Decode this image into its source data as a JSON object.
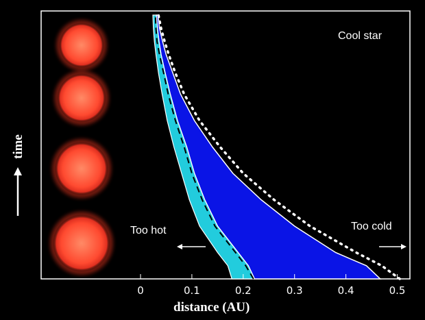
{
  "colors": {
    "background": "#000000",
    "frame": "#ffffff",
    "zone_outer": "#0a14e6",
    "zone_inner": "#22ccdd",
    "star": "#ff5a3c"
  },
  "annotations": {
    "cool_star": "Cool star",
    "too_hot": "Too hot",
    "too_cold": "Too cold",
    "time": "time"
  },
  "chart_data": {
    "type": "area",
    "title": "",
    "xlabel": "distance (AU)",
    "ylabel": "time",
    "xlim": [
      -0.18,
      0.52
    ],
    "x_ticks": [
      "0",
      "0.1",
      "0.2",
      "0.3",
      "0.4",
      "0.5"
    ],
    "x_tick_values": [
      0,
      0.1,
      0.2,
      0.3,
      0.4,
      0.5
    ],
    "time_fraction": [
      0,
      0.05,
      0.1,
      0.2,
      0.3,
      0.4,
      0.5,
      0.6,
      0.7,
      0.78,
      0.85,
      0.9,
      0.95,
      1.0
    ],
    "habitable_zone_inner_au": [
      0.222,
      0.21,
      0.19,
      0.15,
      0.125,
      0.105,
      0.09,
      0.072,
      0.058,
      0.048,
      0.04,
      0.036,
      0.033,
      0.031
    ],
    "habitable_zone_outer_au": [
      0.467,
      0.44,
      0.38,
      0.3,
      0.235,
      0.18,
      0.14,
      0.105,
      0.078,
      0.063,
      0.05,
      0.043,
      0.037,
      0.034
    ],
    "cyan_zone_inner_au": [
      0.178,
      0.17,
      0.15,
      0.115,
      0.095,
      0.08,
      0.065,
      0.052,
      0.042,
      0.035,
      0.03,
      0.027,
      0.025,
      0.024
    ],
    "dashed_curve_au": [
      0.22,
      0.205,
      0.185,
      0.145,
      0.12,
      0.1,
      0.085,
      0.068,
      0.054,
      0.045,
      0.037,
      0.032,
      0.03,
      0.029
    ],
    "dotted_curve_au": [
      0.505,
      0.47,
      0.42,
      0.33,
      0.26,
      0.2,
      0.155,
      0.115,
      0.085,
      0.068,
      0.055,
      0.047,
      0.04,
      0.035
    ],
    "star_sizes_relative": [
      1.0,
      0.93,
      0.85,
      0.78
    ]
  }
}
